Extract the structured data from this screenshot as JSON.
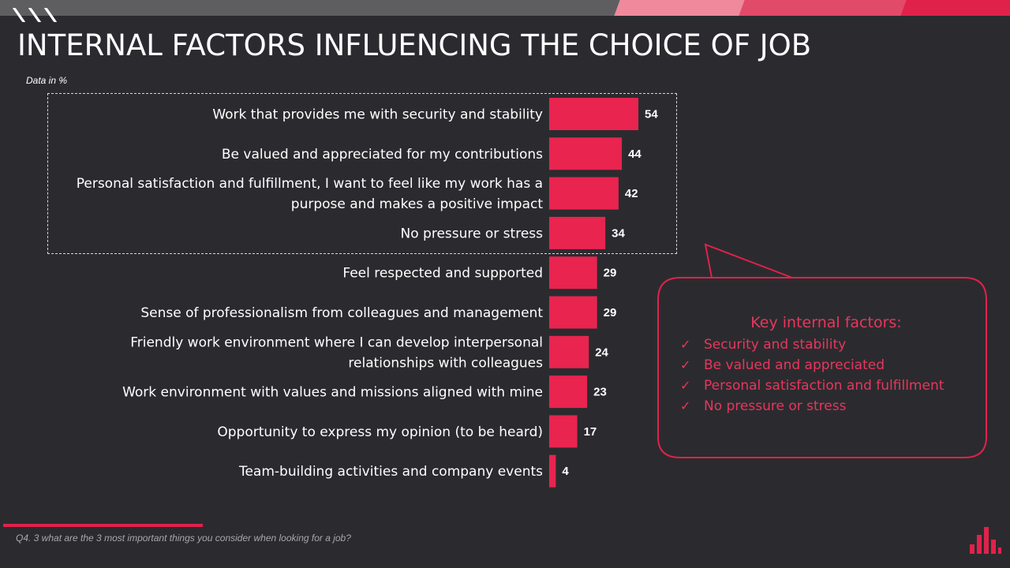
{
  "page": {
    "title": "INTERNAL FACTORS INFLUENCING THE CHOICE OF JOB",
    "data_note": "Data in %",
    "footnote": "Q4. 3 what are the 3 most important things you consider when looking for a job?"
  },
  "colors": {
    "background": "#2b2b2f",
    "bar": "#e8244f",
    "accent": "#e0224b",
    "callout_text": "#e8365d"
  },
  "icons": {
    "decor": "slash-marks-icon",
    "check": "checkmark-icon",
    "logo": "bar-logo-icon"
  },
  "callout": {
    "title": "Key internal factors:",
    "check_symbol": "✓",
    "items": [
      "Security and stability",
      "Be valued and appreciated",
      "Personal satisfaction and fulfillment",
      "No pressure  or stress"
    ]
  },
  "chart_data": {
    "type": "bar",
    "orientation": "horizontal",
    "title": "",
    "xlabel": "",
    "ylabel": "",
    "xlim": [
      0,
      54
    ],
    "grid": false,
    "legend": "none",
    "categories": [
      [
        "Work that provides me with security and stability"
      ],
      [
        "Be valued and appreciated for my contributions"
      ],
      [
        "Personal satisfaction and fulfillment, I want to feel like my work has a",
        "purpose and makes a positive impact"
      ],
      [
        "No pressure  or stress"
      ],
      [
        "Feel respected and supported"
      ],
      [
        "Sense of professionalism from colleagues and management"
      ],
      [
        "Friendly work environment where I can develop interpersonal",
        "relationships with colleagues"
      ],
      [
        "Work environment with values and missions aligned with mine"
      ],
      [
        "Opportunity to express my opinion (to be heard)"
      ],
      [
        "Team-building activities and company events"
      ]
    ],
    "values": [
      54,
      44,
      42,
      34,
      29,
      29,
      24,
      23,
      17,
      4
    ],
    "value_labels": [
      "54",
      "44",
      "42",
      "34",
      "29",
      "29",
      "24",
      "23",
      "17",
      "4"
    ]
  }
}
